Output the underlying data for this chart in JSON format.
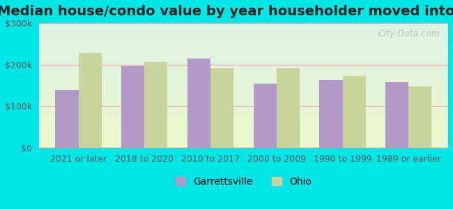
{
  "title": "Median house/condo value by year householder moved into unit",
  "categories": [
    "2021 or later",
    "2018 to 2020",
    "2010 to 2017",
    "2000 to 2009",
    "1990 to 1999",
    "1989 or earlier"
  ],
  "garrettsville": [
    140000,
    197000,
    215000,
    155000,
    163000,
    158000
  ],
  "ohio": [
    228000,
    207000,
    192000,
    192000,
    172000,
    148000
  ],
  "garrettsville_color": "#b399c8",
  "ohio_color": "#c8d49b",
  "background_color": "#e8f5e8",
  "outer_background": "#00e5e5",
  "plot_bg_top": "#e0f0f0",
  "plot_bg_bottom": "#e8f5e0",
  "ylim": [
    0,
    300000
  ],
  "yticks": [
    0,
    100000,
    200000,
    300000
  ],
  "ytick_labels": [
    "$0",
    "$100k",
    "$200k",
    "$300k"
  ],
  "bar_width": 0.35,
  "legend_labels": [
    "Garrettsville",
    "Ohio"
  ],
  "watermark": "City-Data.com",
  "title_fontsize": 14,
  "tick_fontsize": 9,
  "legend_fontsize": 10
}
